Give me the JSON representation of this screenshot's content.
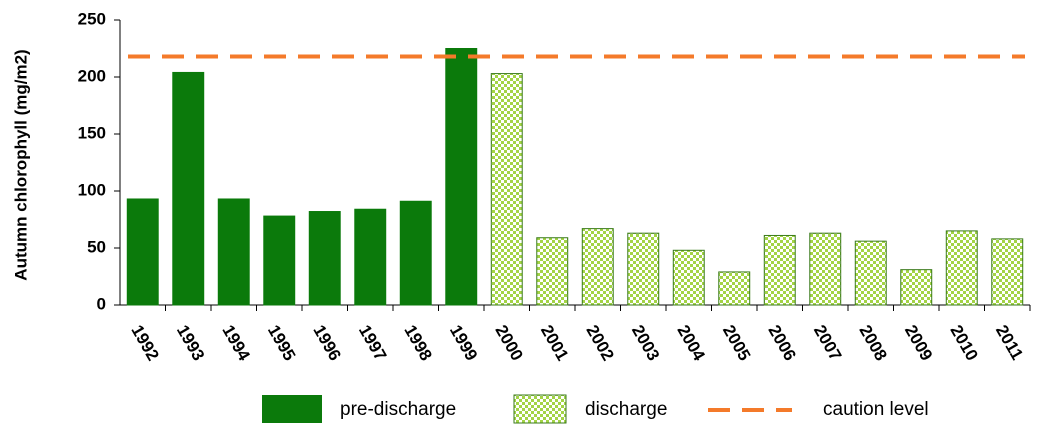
{
  "chart_data": {
    "type": "bar",
    "y_label": "Autumn chlorophyll (mg/m2)",
    "categories": [
      "1992",
      "1993",
      "1994",
      "1995",
      "1996",
      "1997",
      "1998",
      "1999",
      "2000",
      "2001",
      "2002",
      "2003",
      "2004",
      "2005",
      "2006",
      "2007",
      "2008",
      "2009",
      "2010",
      "2011"
    ],
    "series": [
      {
        "name": "pre-discharge",
        "color": "#0b7a0b",
        "values": [
          93,
          204,
          93,
          78,
          82,
          84,
          91,
          225,
          null,
          null,
          null,
          null,
          null,
          null,
          null,
          null,
          null,
          null,
          null,
          null
        ]
      },
      {
        "name": "discharge",
        "color": "#a3d445",
        "values": [
          null,
          null,
          null,
          null,
          null,
          null,
          null,
          null,
          203,
          59,
          67,
          63,
          48,
          29,
          61,
          63,
          56,
          31,
          65,
          58
        ]
      }
    ],
    "caution_level": {
      "name": "caution level",
      "value": 218,
      "color": "#f47a2a"
    },
    "ylim": [
      0,
      250
    ],
    "yticks": [
      0,
      50,
      100,
      150,
      200,
      250
    ]
  }
}
